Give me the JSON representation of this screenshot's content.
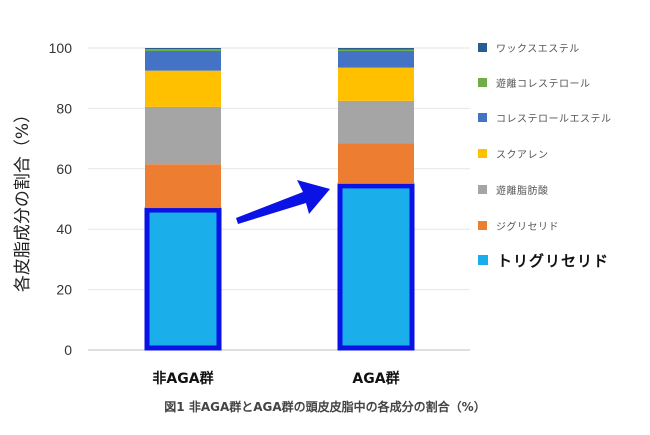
{
  "chart_data": {
    "type": "bar",
    "stacked": true,
    "categories": [
      "非AGA群",
      "AGA群"
    ],
    "series": [
      {
        "name": "トリグリセリド",
        "color": "#1aafea",
        "values": [
          47,
          55
        ]
      },
      {
        "name": "ジグリセリド",
        "color": "#ed7d31",
        "values": [
          14.5,
          13.5
        ]
      },
      {
        "name": "遊離脂肪酸",
        "color": "#a5a5a5",
        "values": [
          19,
          14
        ]
      },
      {
        "name": "スクアレン",
        "color": "#ffc000",
        "values": [
          12,
          11
        ]
      },
      {
        "name": "コレステロールエステル",
        "color": "#4472c4",
        "values": [
          6.5,
          5.5
        ]
      },
      {
        "name": "遊離コレステロール",
        "color": "#70ad47",
        "values": [
          0.6,
          0.5
        ]
      },
      {
        "name": "ワックスエステル",
        "color": "#255e91",
        "values": [
          0.4,
          0.5
        ]
      }
    ],
    "ylabel": "各皮脂成分の割合（%）",
    "ylim": [
      0,
      100
    ],
    "yticks": [
      0,
      20,
      40,
      60,
      80,
      100
    ],
    "grid": true,
    "legend": "right",
    "highlight": {
      "series": "トリグリセリド",
      "outline_color": "#0a12e6"
    },
    "annotation": "arrow from 非AGA群 トリグリセリド to AGA群 トリグリセリド (increase)"
  },
  "caption": "図1 非AGA群とAGA群の頭皮皮脂中の各成分の割合（%）",
  "legend_order": [
    "ワックスエステル",
    "遊離コレステロール",
    "コレステロールエステル",
    "スクアレン",
    "遊離脂肪酸",
    "ジグリセリド",
    "トリグリセリド"
  ],
  "emphasized_legend_item": "トリグリセリド"
}
